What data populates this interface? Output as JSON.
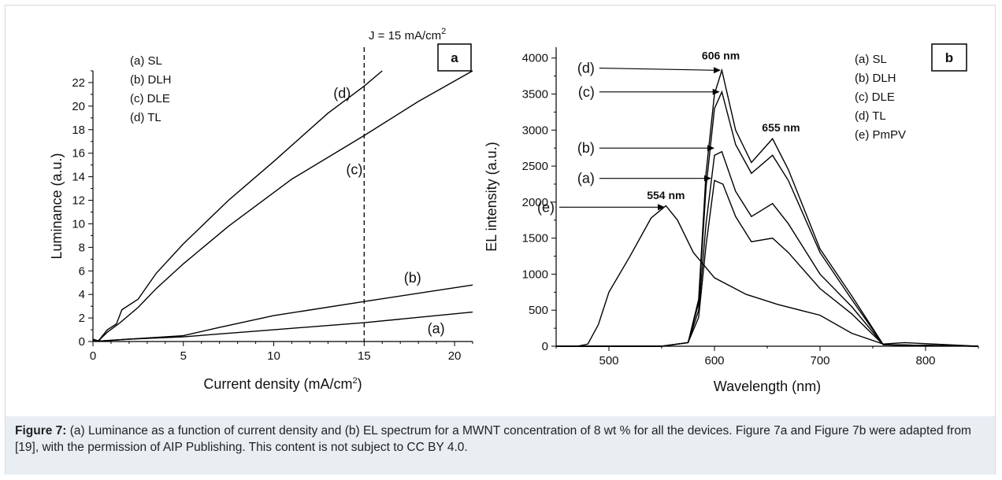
{
  "caption": {
    "figure_label": "Figure 7:",
    "text": " (a) Luminance as a function of current density and (b) EL spectrum for a MWNT concentration of 8 wt % for all the devices. Figure 7a and Figure 7b were adapted from [19], with the permission of AIP Publishing. This content is not subject to CC BY 4.0."
  },
  "chart_data": [
    {
      "type": "line",
      "panel": "a",
      "xlabel": "Current density (mA/cm",
      "xlabel_sup": "2",
      "xlabel_close": ")",
      "ylabel": "Luminance (a.u.)",
      "xlim": [
        0,
        21
      ],
      "ylim": [
        0,
        23
      ],
      "xticks": [
        0,
        5,
        10,
        15,
        20
      ],
      "yticks": [
        0,
        2,
        4,
        6,
        8,
        10,
        12,
        14,
        16,
        18,
        20,
        22
      ],
      "legend": [
        "(a) SL",
        "(b) DLH",
        "(c) DLE",
        "(d) TL"
      ],
      "annotation": {
        "text": "J = 15 mA/cm",
        "sup": "2",
        "x": 15
      },
      "series": [
        {
          "name": "(a)",
          "x": [
            0,
            0.5,
            2,
            5,
            10,
            15,
            21
          ],
          "y": [
            0.1,
            0.05,
            0.2,
            0.4,
            1.0,
            1.6,
            2.5
          ]
        },
        {
          "name": "(b)",
          "x": [
            0,
            0.5,
            2,
            5,
            7,
            10,
            15,
            21
          ],
          "y": [
            0.1,
            0.05,
            0.2,
            0.5,
            1.2,
            2.2,
            3.4,
            4.8
          ]
        },
        {
          "name": "(c)",
          "x": [
            0,
            0.3,
            0.8,
            1.5,
            2.5,
            3.5,
            5,
            7.5,
            11,
            15,
            18,
            21
          ],
          "y": [
            0.2,
            0.05,
            0.8,
            1.6,
            2.9,
            4.5,
            6.6,
            9.8,
            13.8,
            17.5,
            20.4,
            23
          ]
        },
        {
          "name": "(d)",
          "x": [
            0,
            0.3,
            0.8,
            1.3,
            1.6,
            2.5,
            3.5,
            5,
            7.5,
            10,
            13,
            15,
            16
          ],
          "y": [
            0.2,
            0.05,
            1.0,
            1.5,
            2.7,
            3.6,
            5.8,
            8.3,
            12.0,
            15.3,
            19.4,
            21.7,
            23
          ]
        }
      ],
      "curve_labels": [
        {
          "text": "(a)",
          "x": 18.5,
          "y": 0.7
        },
        {
          "text": "(b)",
          "x": 17.2,
          "y": 5.0
        },
        {
          "text": "(c)",
          "x": 14.0,
          "y": 14.2
        },
        {
          "text": "(d)",
          "x": 13.3,
          "y": 20.7
        }
      ]
    },
    {
      "type": "line",
      "panel": "b",
      "xlabel": "Wavelength (nm)",
      "ylabel": "EL intensity (a.u.)",
      "xlim": [
        450,
        850
      ],
      "ylim": [
        0,
        4150
      ],
      "xticks": [
        500,
        600,
        700,
        800
      ],
      "yticks": [
        0,
        500,
        1000,
        1500,
        2000,
        2500,
        3000,
        3500,
        4000
      ],
      "legend": [
        "(a) SL",
        "(b) DLH",
        "(c) DLE",
        "(d) TL",
        "(e) PmPV"
      ],
      "peak_labels": [
        {
          "text": "606 nm",
          "x": 606,
          "y": 3980
        },
        {
          "text": "655 nm",
          "x": 663,
          "y": 2980
        },
        {
          "text": "554 nm",
          "x": 554,
          "y": 2040
        }
      ],
      "series": [
        {
          "name": "(a)",
          "x": [
            450,
            550,
            575,
            585,
            592,
            600,
            608,
            620,
            635,
            655,
            670,
            700,
            730,
            760,
            850
          ],
          "y": [
            0,
            0,
            50,
            400,
            1400,
            2300,
            2250,
            1800,
            1450,
            1500,
            1300,
            800,
            450,
            20,
            0
          ]
        },
        {
          "name": "(b)",
          "x": [
            450,
            550,
            575,
            585,
            592,
            600,
            607,
            620,
            635,
            655,
            670,
            700,
            730,
            760,
            850
          ],
          "y": [
            0,
            0,
            50,
            500,
            1700,
            2650,
            2700,
            2150,
            1800,
            1980,
            1700,
            1000,
            550,
            20,
            0
          ]
        },
        {
          "name": "(c)",
          "x": [
            450,
            550,
            575,
            585,
            592,
            600,
            607,
            620,
            635,
            655,
            670,
            700,
            730,
            760,
            850
          ],
          "y": [
            0,
            0,
            50,
            600,
            2200,
            3300,
            3530,
            2800,
            2400,
            2650,
            2300,
            1300,
            650,
            20,
            0
          ]
        },
        {
          "name": "(d)",
          "x": [
            450,
            550,
            575,
            585,
            592,
            600,
            607,
            620,
            635,
            655,
            670,
            700,
            730,
            760,
            850
          ],
          "y": [
            0,
            0,
            50,
            650,
            2400,
            3500,
            3830,
            3000,
            2550,
            2880,
            2450,
            1350,
            700,
            20,
            0
          ]
        },
        {
          "name": "(e)",
          "x": [
            450,
            470,
            480,
            490,
            500,
            520,
            540,
            554,
            565,
            580,
            600,
            630,
            660,
            700,
            730,
            760,
            780,
            850
          ],
          "y": [
            0,
            0,
            30,
            300,
            750,
            1250,
            1780,
            1950,
            1750,
            1300,
            950,
            720,
            580,
            430,
            180,
            30,
            50,
            0
          ]
        }
      ],
      "curve_labels": [
        {
          "text": "(d)",
          "label_x": 488,
          "label_y": 3860,
          "arrow_to_x": 606,
          "arrow_to_y": 3830
        },
        {
          "text": "(c)",
          "label_x": 488,
          "label_y": 3530,
          "arrow_to_x": 605,
          "arrow_to_y": 3530
        },
        {
          "text": "(b)",
          "label_x": 488,
          "label_y": 2750,
          "arrow_to_x": 600,
          "arrow_to_y": 2750
        },
        {
          "text": "(a)",
          "label_x": 488,
          "label_y": 2330,
          "arrow_to_x": 597,
          "arrow_to_y": 2330
        },
        {
          "text": "(e)",
          "label_x": 450,
          "label_y": 1930,
          "arrow_to_x": 553,
          "arrow_to_y": 1930
        }
      ]
    }
  ]
}
